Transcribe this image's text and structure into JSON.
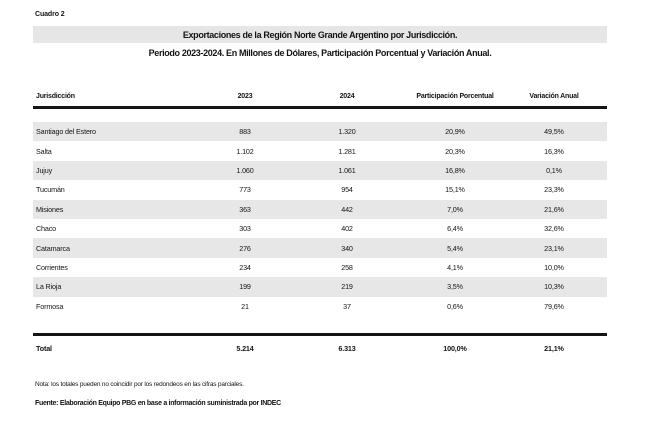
{
  "page": {
    "cuadro_label": "Cuadro 2",
    "title": "Exportaciones de la Región Norte Grande Argentino por Jurisdicción.",
    "subtitle": "Periodo 2023-2024. En Millones de Dólares, Participación Porcentual y Variación Anual.",
    "note": "Nota: los totales pueden no coincidir por los redondeos en las cifras parciales.",
    "source": "Fuente: Elaboración Equipo PBG en base a información suministrada por INDEC"
  },
  "colors": {
    "title_band_bg": "#e6e6e6",
    "row_alt_bg": "#e7e7e7",
    "rule": "#151515"
  },
  "chart_data": {
    "type": "table",
    "title": "Exportaciones de la Región Norte Grande Argentino por Jurisdicción.",
    "subtitle": "Periodo 2023-2024. En Millones de Dólares, Participación Porcentual y Variación Anual.",
    "columns": [
      "Jurisdicción",
      "2023",
      "2024",
      "Participación Porcentual",
      "Variación Anual"
    ],
    "rows": [
      {
        "jurisdiccion": "Santiago del Estero",
        "y2023": "883",
        "y2024": "1.320",
        "participacion": "20,9%",
        "variacion": "49,5%"
      },
      {
        "jurisdiccion": "Salta",
        "y2023": "1.102",
        "y2024": "1.281",
        "participacion": "20,3%",
        "variacion": "16,3%"
      },
      {
        "jurisdiccion": "Jujuy",
        "y2023": "1.060",
        "y2024": "1.061",
        "participacion": "16,8%",
        "variacion": "0,1%"
      },
      {
        "jurisdiccion": "Tucumán",
        "y2023": "773",
        "y2024": "954",
        "participacion": "15,1%",
        "variacion": "23,3%"
      },
      {
        "jurisdiccion": "Misiones",
        "y2023": "363",
        "y2024": "442",
        "participacion": "7,0%",
        "variacion": "21,6%"
      },
      {
        "jurisdiccion": "Chaco",
        "y2023": "303",
        "y2024": "402",
        "participacion": "6,4%",
        "variacion": "32,6%"
      },
      {
        "jurisdiccion": "Catamarca",
        "y2023": "276",
        "y2024": "340",
        "participacion": "5,4%",
        "variacion": "23,1%"
      },
      {
        "jurisdiccion": "Corrientes",
        "y2023": "234",
        "y2024": "258",
        "participacion": "4,1%",
        "variacion": "10,0%"
      },
      {
        "jurisdiccion": "La Rioja",
        "y2023": "199",
        "y2024": "219",
        "participacion": "3,5%",
        "variacion": "10,3%"
      },
      {
        "jurisdiccion": "Formosa",
        "y2023": "21",
        "y2024": "37",
        "participacion": "0,6%",
        "variacion": "79,6%"
      }
    ],
    "total": {
      "jurisdiccion": "Total",
      "y2023": "5.214",
      "y2024": "6.313",
      "participacion": "100,0%",
      "variacion": "21,1%"
    }
  }
}
